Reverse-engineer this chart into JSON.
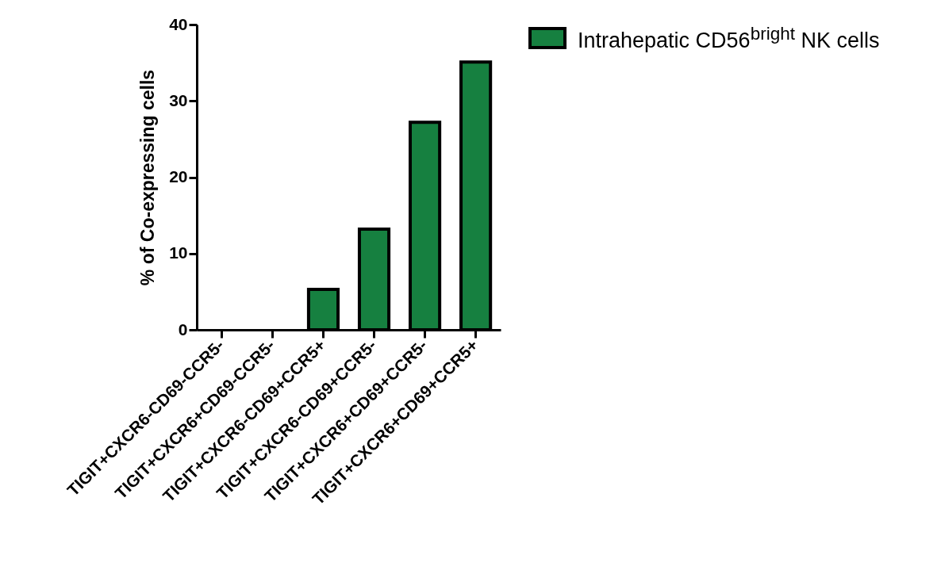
{
  "chart_data": {
    "type": "bar",
    "ylabel": "% of Co-expressing cells",
    "categories": [
      "TIGIT+CXCR6-CD69-CCR5-",
      "TIGIT+CXCR6+CD69-CCR5-",
      "TIGIT+CXCR6-CD69+CCR5+",
      "TIGIT+CXCR6-CD69+CCR5-",
      "TIGIT+CXCR6+CD69+CCR5-",
      "TIGIT+CXCR6+CD69+CCR5+"
    ],
    "series": [
      {
        "name": "Intrahepatic CD56$^{bright}$ NK cells",
        "color": "#168040",
        "values": [
          0,
          0,
          5.3,
          13.2,
          27.2,
          35.1
        ]
      }
    ],
    "ylim": [
      0,
      40
    ],
    "yticks": [
      0,
      10,
      20,
      30,
      40
    ],
    "grid": false,
    "legend": "top right"
  }
}
